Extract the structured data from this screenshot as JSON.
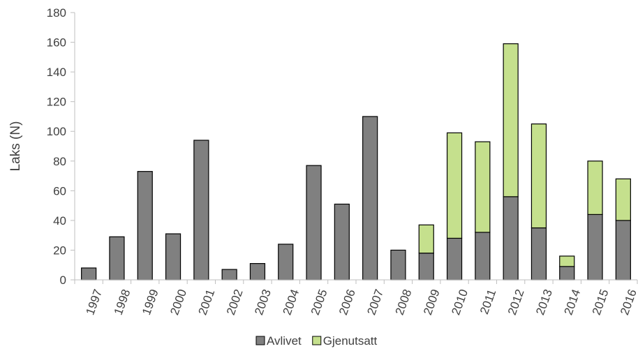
{
  "chart_data": {
    "type": "bar",
    "stacked": true,
    "title": "",
    "xlabel": "",
    "ylabel": "Laks (N)",
    "ylim": [
      0,
      180
    ],
    "yticks": [
      0,
      20,
      40,
      60,
      80,
      100,
      120,
      140,
      160,
      180
    ],
    "grid": false,
    "legend_position": "bottom",
    "categories": [
      "1997",
      "1998",
      "1999",
      "2000",
      "2001",
      "2002",
      "2003",
      "2004",
      "2005",
      "2006",
      "2007",
      "2008",
      "2009",
      "2010",
      "2011",
      "2012",
      "2013",
      "2014",
      "2015",
      "2016"
    ],
    "series": [
      {
        "name": "Avlivet",
        "color": "#808080",
        "values": [
          8,
          29,
          73,
          31,
          94,
          7,
          11,
          24,
          77,
          51,
          110,
          20,
          18,
          28,
          32,
          56,
          35,
          9,
          44,
          40
        ]
      },
      {
        "name": "Gjenutsatt",
        "color": "#c5e08d",
        "values": [
          0,
          0,
          0,
          0,
          0,
          0,
          0,
          0,
          0,
          0,
          0,
          0,
          19,
          71,
          61,
          103,
          70,
          7,
          36,
          28
        ]
      }
    ]
  }
}
